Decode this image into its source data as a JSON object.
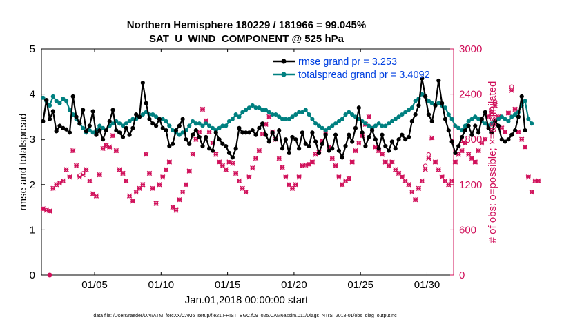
{
  "colors": {
    "rmse": "#000000",
    "spread": "#008080",
    "obs": "#d0105a",
    "legend_text": "#0040e0",
    "background": "#ffffff"
  },
  "chart_data": {
    "type": "line",
    "title_line1": "Northern Hemisphere 180229 / 181966 = 99.045%",
    "title_line2": "SAT_U_WIND_COMPONENT @ 525 hPa",
    "ylabel": "rmse and totalspread",
    "y2label": "# of obs: o=possible; ×=assimilated",
    "xlabel": "Jan.01,2018 00:00:00 start",
    "footer": "data file: /Users/raeder/DAI/ATM_forcXX/CAM6_setup/f.e21.FHIST_BGC.f09_025.CAM6assim.011/Diags_NTrS_2018-01/obs_diag_output.nc",
    "xlim": [
      1,
      32
    ],
    "ylim": [
      0,
      5
    ],
    "y2lim": [
      0,
      3000
    ],
    "x_ticks": [
      {
        "value": 5,
        "label": "01/05"
      },
      {
        "value": 10,
        "label": "01/10"
      },
      {
        "value": 15,
        "label": "01/15"
      },
      {
        "value": 20,
        "label": "01/20"
      },
      {
        "value": 25,
        "label": "01/25"
      },
      {
        "value": 30,
        "label": "01/30"
      }
    ],
    "y_ticks": [
      {
        "value": 0,
        "label": "0"
      },
      {
        "value": 1,
        "label": "1"
      },
      {
        "value": 2,
        "label": "2"
      },
      {
        "value": 3,
        "label": "3"
      },
      {
        "value": 4,
        "label": "4"
      },
      {
        "value": 5,
        "label": "5"
      }
    ],
    "y2_ticks": [
      {
        "value": 0,
        "label": "0"
      },
      {
        "value": 600,
        "label": "600"
      },
      {
        "value": 1200,
        "label": "1200"
      },
      {
        "value": 1800,
        "label": "1800"
      },
      {
        "value": 2400,
        "label": "2400"
      },
      {
        "value": 3000,
        "label": "3000"
      }
    ],
    "x_start": 1.125,
    "x_step": 0.25,
    "series": [
      {
        "name": "rmse grand pr = 3.253",
        "axis": "left",
        "values": [
          3.4,
          3.87,
          3.45,
          3.62,
          3.18,
          3.3,
          3.25,
          3.22,
          3.15,
          3.95,
          3.5,
          3.35,
          3.65,
          3.18,
          3.3,
          3.62,
          3.1,
          3.2,
          3.0,
          3.2,
          3.4,
          3.65,
          3.2,
          3.15,
          3.05,
          3.25,
          3.1,
          3.25,
          3.55,
          3.5,
          4.25,
          3.8,
          3.45,
          3.35,
          3.3,
          3.45,
          3.25,
          3.2,
          2.85,
          2.9,
          3.2,
          3.3,
          3.45,
          3.0,
          2.9,
          3.1,
          3.2,
          3.05,
          2.85,
          3.05,
          2.8,
          2.75,
          3.15,
          3.0,
          2.9,
          2.85,
          2.7,
          2.6,
          2.8,
          3.25,
          3.15,
          3.15,
          3.15,
          3.2,
          3.1,
          3.25,
          3.35,
          3.1,
          2.95,
          3.15,
          3.0,
          3.2,
          2.8,
          3.0,
          2.7,
          3.05,
          3.0,
          2.8,
          3.15,
          2.9,
          2.85,
          3.15,
          2.95,
          2.7,
          2.9,
          3.1,
          2.75,
          2.8,
          3.1,
          2.75,
          2.6,
          2.85,
          3.1,
          2.95,
          3.25,
          3.7,
          3.15,
          2.85,
          3.05,
          3.2,
          3.0,
          2.8,
          3.1,
          2.85,
          2.75,
          2.95,
          2.8,
          3.0,
          3.1,
          3.0,
          3.05,
          3.4,
          3.55,
          3.75,
          4.35,
          3.95,
          3.55,
          3.4,
          3.75,
          4.3,
          3.8,
          3.45,
          3.2,
          2.95,
          2.7,
          2.85,
          3.05,
          3.2,
          3.3,
          3.1,
          3.3,
          3.15,
          3.45,
          3.6,
          3.25,
          3.15,
          3.4,
          3.3,
          3.0,
          2.95,
          3.0,
          3.1,
          3.2,
          3.5,
          3.95,
          3.2
        ],
        "marker": "filled-circle"
      },
      {
        "name": "totalspread grand pr = 3.4092",
        "axis": "left",
        "values": [
          3.92,
          3.85,
          3.75,
          3.95,
          3.85,
          3.8,
          3.9,
          3.85,
          3.65,
          3.55,
          3.45,
          3.35,
          3.25,
          3.15,
          3.2,
          3.15,
          3.2,
          3.3,
          3.25,
          3.2,
          3.3,
          3.35,
          3.4,
          3.35,
          3.3,
          3.35,
          3.4,
          3.45,
          3.45,
          3.5,
          3.55,
          3.6,
          3.55,
          3.55,
          3.5,
          3.45,
          3.45,
          3.4,
          3.3,
          3.2,
          3.15,
          3.1,
          3.15,
          3.2,
          3.3,
          3.4,
          3.35,
          3.35,
          3.3,
          3.35,
          3.3,
          3.25,
          3.2,
          3.25,
          3.3,
          3.3,
          3.4,
          3.45,
          3.55,
          3.5,
          3.6,
          3.65,
          3.7,
          3.75,
          3.7,
          3.7,
          3.65,
          3.65,
          3.6,
          3.55,
          3.55,
          3.5,
          3.45,
          3.45,
          3.45,
          3.5,
          3.55,
          3.6,
          3.6,
          3.65,
          3.55,
          3.45,
          3.35,
          3.3,
          3.25,
          3.2,
          3.25,
          3.3,
          3.35,
          3.4,
          3.45,
          3.55,
          3.6,
          3.55,
          3.5,
          3.45,
          3.4,
          3.35,
          3.3,
          3.25,
          3.3,
          3.35,
          3.3,
          3.3,
          3.35,
          3.4,
          3.45,
          3.5,
          3.55,
          3.6,
          3.65,
          3.7,
          3.85,
          3.9,
          4.0,
          3.95,
          3.85,
          3.8,
          3.75,
          3.8,
          3.75,
          3.7,
          3.55,
          3.45,
          3.3,
          3.25,
          3.2,
          3.3,
          3.4,
          3.45,
          3.5,
          3.45,
          3.4,
          3.35,
          3.3,
          3.35,
          3.4,
          3.45,
          3.5,
          3.45,
          3.4,
          3.5,
          3.55,
          3.6,
          3.75,
          3.85,
          3.45,
          3.35
        ],
        "marker": "filled-circle"
      },
      {
        "name": "obs possible",
        "axis": "right",
        "marker": "circle",
        "values": [
          880,
          860,
          850,
          1150,
          1200,
          1220,
          1250,
          1400,
          1300,
          1650,
          1450,
          1320,
          1350,
          1400,
          1250,
          1080,
          1050,
          1330,
          1680,
          1720,
          1700,
          1850,
          1650,
          1400,
          1350,
          1250,
          1050,
          980,
          1100,
          1150,
          1200,
          1600,
          1350,
          1150,
          950,
          1200,
          1300,
          1400,
          1500,
          900,
          860,
          1000,
          1100,
          1200,
          1380,
          1600,
          1800,
          1900,
          2200,
          2050,
          1900,
          1750,
          1600,
          1500,
          1450,
          1400,
          1500,
          1480,
          1350,
          1250,
          1150,
          1100,
          1300,
          1420,
          1550,
          1650,
          1870,
          2000,
          2100,
          1900,
          1800,
          1550,
          1430,
          1300,
          1200,
          1150,
          1200,
          1300,
          1450,
          1460,
          1470,
          1500,
          1600,
          1630,
          1780,
          1900,
          1700,
          1550,
          1450,
          1300,
          1200,
          1250,
          1280,
          1500,
          1650,
          1750,
          1850,
          2000,
          2100,
          1950,
          1700,
          1650,
          1600,
          1500,
          1450,
          1500,
          1400,
          1350,
          1300,
          1250,
          1200,
          1100,
          1000,
          1150,
          1250,
          1450,
          1600,
          1820,
          1500,
          1400,
          1300,
          1250,
          1200,
          1250,
          1500,
          1600,
          1650,
          1750,
          1600,
          1550,
          1500,
          1650,
          1750,
          1800,
          2100,
          2200,
          2300,
          2100,
          1950,
          1900,
          2150,
          2500,
          2200,
          1900,
          1800,
          1700,
          1300,
          1100,
          1250,
          1250
        ]
      },
      {
        "name": "obs assimilated",
        "axis": "right",
        "marker": "x",
        "values": [
          880,
          860,
          850,
          1150,
          1200,
          1220,
          1250,
          1400,
          1300,
          1650,
          1450,
          1300,
          1330,
          1400,
          1250,
          1080,
          1050,
          1330,
          1680,
          1720,
          1700,
          1850,
          1650,
          1400,
          1350,
          1250,
          1050,
          980,
          1100,
          1150,
          1200,
          1600,
          1350,
          1150,
          950,
          1200,
          1300,
          1400,
          1500,
          900,
          860,
          1000,
          1100,
          1200,
          1380,
          1600,
          1800,
          1900,
          2200,
          2050,
          1900,
          1750,
          1600,
          1500,
          1450,
          1400,
          1500,
          1480,
          1350,
          1250,
          1150,
          1100,
          1300,
          1420,
          1550,
          1650,
          1870,
          2000,
          2100,
          1900,
          1800,
          1550,
          1430,
          1300,
          1200,
          1150,
          1200,
          1300,
          1450,
          1460,
          1470,
          1500,
          1600,
          1630,
          1780,
          1900,
          1700,
          1550,
          1450,
          1300,
          1200,
          1250,
          1280,
          1500,
          1650,
          1750,
          1850,
          2000,
          2100,
          1950,
          1700,
          1650,
          1600,
          1500,
          1450,
          1500,
          1400,
          1350,
          1300,
          1250,
          1200,
          1100,
          1000,
          1150,
          1250,
          1400,
          1550,
          1820,
          1500,
          1400,
          1300,
          1250,
          1200,
          1250,
          1500,
          1600,
          1650,
          1750,
          1600,
          1550,
          1500,
          1650,
          1750,
          1800,
          2100,
          2150,
          2250,
          2100,
          1950,
          1900,
          2150,
          2450,
          2200,
          1900,
          1800,
          1700,
          1300,
          1100,
          1250,
          1250
        ]
      }
    ],
    "legend": {
      "position": "top-right",
      "entries": [
        {
          "label": "rmse grand pr = 3.253",
          "color": "#000000"
        },
        {
          "label": "totalspread grand pr = 3.4092",
          "color": "#008080"
        }
      ]
    }
  }
}
